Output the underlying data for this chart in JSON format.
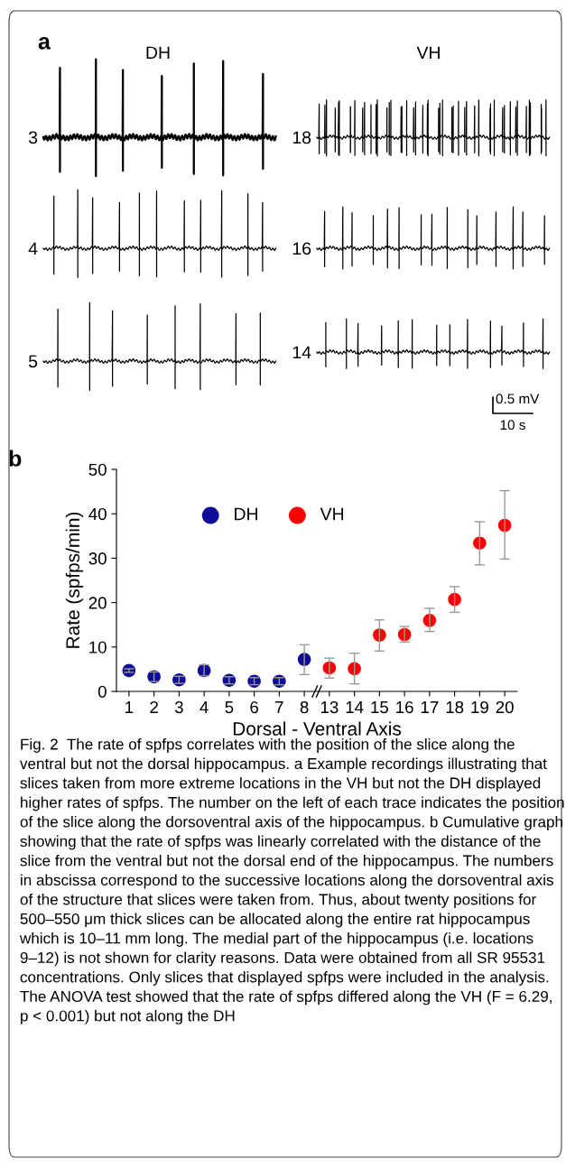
{
  "chart_data": [
    {
      "type": "other",
      "title": "a",
      "annotations": [
        "DH",
        "VH",
        "3",
        "4",
        "5",
        "18",
        "16",
        "14",
        "0.5 mV",
        "10 s"
      ]
    },
    {
      "type": "scatter",
      "title": "b",
      "xlabel": "Dorsal - Ventral Axis",
      "ylabel": "Rate (spfps/min)",
      "categories": [
        "1",
        "2",
        "3",
        "4",
        "5",
        "6",
        "7",
        "8",
        "13",
        "14",
        "15",
        "16",
        "17",
        "18",
        "19",
        "20"
      ],
      "ylim": [
        0,
        50
      ],
      "yticks": [
        0,
        10,
        20,
        30,
        40,
        50
      ],
      "grid": false,
      "legend": "top",
      "marker": "circle",
      "series": [
        {
          "name": "DH",
          "color": "#0c0c96",
          "values": [
            4.7,
            3.3,
            2.6,
            4.7,
            2.5,
            2.3,
            2.3,
            7.2,
            null,
            null,
            null,
            null,
            null,
            null,
            null,
            null
          ],
          "errors": [
            0.4,
            1.1,
            0.8,
            [
              3.5,
              6.0
            ],
            0.8,
            0.8,
            0.8,
            [
              3.8,
              10.5
            ],
            null,
            null,
            null,
            null,
            null,
            null,
            null,
            null
          ]
        },
        {
          "name": "VH",
          "color": "#ff0000",
          "values": [
            null,
            null,
            null,
            null,
            null,
            null,
            null,
            null,
            5.3,
            5.1,
            12.7,
            12.8,
            16.0,
            20.7,
            33.4,
            37.4
          ],
          "errors": [
            null,
            null,
            null,
            null,
            null,
            null,
            null,
            null,
            [
              3.0,
              7.5
            ],
            [
              1.7,
              8.6
            ],
            [
              9.1,
              16.1
            ],
            [
              11.1,
              14.6
            ],
            [
              13.5,
              18.7
            ],
            [
              17.8,
              23.6
            ],
            [
              28.5,
              38.2
            ],
            [
              29.8,
              45.2
            ]
          ]
        }
      ],
      "annotations": [
        "Fig. 2  The rate of spfps correlates with the position of the slice along the ventral but not the dorsal hippocampus. a Example recordings illustrating that slices taken from more extreme locations in the VH but not the DH displayed higher rates of spfps. The number on the left of each trace indicates the position of the slice along the dorsoventral axis of the hippocampus. b Cumulative graph showing that the rate of spfps was linearly correlated with the distance of the slice from the ventral but not the dorsal end of the hippocampus. The numbers in abscissa correspond to the successive locations along the dorsoventral axis of the structure that slices were taken from. Thus, about twenty positions for 500–550 μm thick slices can be allocated along the entire rat hippocampus which is 10–11 mm long. The medial part of the hippocampus (i.e. locations 9–12) is not shown for clarity reasons. Data were obtained from all SR 95531 concentrations. Only slices that displayed spfps were included in the analysis. The ANOVA test showed that the rate of spfps differed along the VH (F = 6.29, p < 0.001) but not along the DH"
      ]
    }
  ]
}
